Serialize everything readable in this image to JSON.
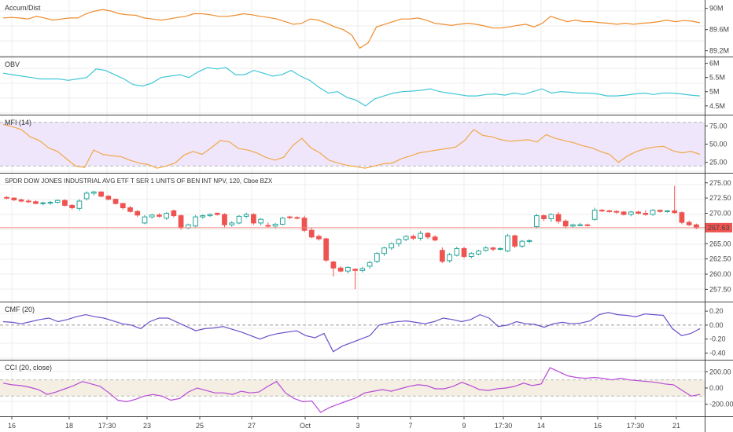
{
  "colors": {
    "accum": "#ef8b2c",
    "obv": "#3fc6d6",
    "mfi": "#f0a848",
    "mfi_band": "#efe6fb",
    "cmf": "#6c4fc8",
    "cci": "#b84ad8",
    "cci_band": "#f4efe2",
    "up": "#26a69a",
    "down": "#ef5350",
    "price_line": "#f28b82",
    "price_badge": "#ef5350",
    "grid": "#eeeeee",
    "border": "#444444"
  },
  "panels": {
    "accum": {
      "label": "Accum/Dist",
      "ticks": [
        "90M",
        "89.6M",
        "89.2M"
      ]
    },
    "obv": {
      "label": "OBV",
      "ticks": [
        "6M",
        "5.5M",
        "5M",
        "4.5M"
      ]
    },
    "mfi": {
      "label": "MFI (14)",
      "ticks": [
        "75.00",
        "50.00",
        "25.00"
      ]
    },
    "price": {
      "label": "SPDR DOW JONES INDUSTRIAL AVG ETF T SER 1 UNITS OF BEN INT NPV, 120, Cboe BZX",
      "ticks": [
        "275.00",
        "272.50",
        "270.00",
        "267.50",
        "265.00",
        "262.50",
        "260.00",
        "257.50"
      ],
      "last_price": "267.63"
    },
    "cmf": {
      "label": "CMF (20)",
      "ticks": [
        "0.20",
        "0.00",
        "-0.20",
        "-0.40"
      ]
    },
    "cci": {
      "label": "CCI (20, close)",
      "ticks": [
        "200.00",
        "0.00",
        "-200.00"
      ]
    }
  },
  "x_axis": {
    "labels": [
      "16",
      "18",
      "17:30",
      "23",
      "25",
      "27",
      "Oct",
      "3",
      "7",
      "9",
      "17:30",
      "14",
      "16",
      "17:30",
      "21"
    ]
  },
  "chart_data": [
    {
      "type": "candlestick",
      "title": "SPDR DOW JONES INDUSTRIAL AVG ETF T SER 1 UNITS OF BEN INT NPV, 120, Cboe BZX",
      "ylim": [
        256,
        276
      ],
      "last": 267.63,
      "candles": [
        [
          272.6,
          272.8,
          272.3,
          272.5
        ],
        [
          272.5,
          272.6,
          272.0,
          272.2
        ],
        [
          272.2,
          272.4,
          271.8,
          272.0
        ],
        [
          272.0,
          272.3,
          271.7,
          271.9
        ],
        [
          271.9,
          272.1,
          271.5,
          271.6
        ],
        [
          271.6,
          271.9,
          271.3,
          271.7
        ],
        [
          271.7,
          272.0,
          271.4,
          271.8
        ],
        [
          271.8,
          272.3,
          271.6,
          272.1
        ],
        [
          272.1,
          272.3,
          271.1,
          271.3
        ],
        [
          271.3,
          271.5,
          270.6,
          270.9
        ],
        [
          270.8,
          272.3,
          270.4,
          272.0
        ],
        [
          272.4,
          273.6,
          272.1,
          273.3
        ],
        [
          273.3,
          273.7,
          272.9,
          273.5
        ],
        [
          273.5,
          273.6,
          272.6,
          272.8
        ],
        [
          272.8,
          273.0,
          272.1,
          272.3
        ],
        [
          272.3,
          272.4,
          271.4,
          271.6
        ],
        [
          271.6,
          271.7,
          270.6,
          270.9
        ],
        [
          270.9,
          271.2,
          270.1,
          270.3
        ],
        [
          270.3,
          270.5,
          269.4,
          269.7
        ],
        [
          268.4,
          269.7,
          268.2,
          269.4
        ],
        [
          269.4,
          269.9,
          269.1,
          269.7
        ],
        [
          269.7,
          270.0,
          269.3,
          269.5
        ],
        [
          269.2,
          270.2,
          268.9,
          270.0
        ],
        [
          270.4,
          270.6,
          269.3,
          269.6
        ],
        [
          269.6,
          269.8,
          267.3,
          267.6
        ],
        [
          267.6,
          268.3,
          267.4,
          268.1
        ],
        [
          267.9,
          269.7,
          267.7,
          269.4
        ],
        [
          269.4,
          269.8,
          269.1,
          269.6
        ],
        [
          269.6,
          270.0,
          269.4,
          269.8
        ],
        [
          270.0,
          270.1,
          269.6,
          269.8
        ],
        [
          269.8,
          270.0,
          267.7,
          268.1
        ],
        [
          268.1,
          268.7,
          267.8,
          268.4
        ],
        [
          268.4,
          269.7,
          268.2,
          269.5
        ],
        [
          269.5,
          270.1,
          269.2,
          269.8
        ],
        [
          269.8,
          270.0,
          268.1,
          268.4
        ],
        [
          268.4,
          269.2,
          268.0,
          269.0
        ],
        [
          268.0,
          268.5,
          267.6,
          267.9
        ],
        [
          267.9,
          268.4,
          267.5,
          268.2
        ],
        [
          268.2,
          269.4,
          268.0,
          269.2
        ],
        [
          269.4,
          269.6,
          269.0,
          269.3
        ],
        [
          269.3,
          269.5,
          269.0,
          269.2
        ],
        [
          269.2,
          269.6,
          266.9,
          267.2
        ],
        [
          267.2,
          267.6,
          265.9,
          266.1
        ],
        [
          266.2,
          266.5,
          265.5,
          265.8
        ],
        [
          265.8,
          266.0,
          262.0,
          262.3
        ],
        [
          262.0,
          262.2,
          259.6,
          261.0
        ],
        [
          261.0,
          261.3,
          260.3,
          260.5
        ],
        [
          260.5,
          261.3,
          260.1,
          261.1
        ],
        [
          260.8,
          261.0,
          257.5,
          260.6
        ],
        [
          260.6,
          261.2,
          260.3,
          260.9
        ],
        [
          261.3,
          262.2,
          260.9,
          261.9
        ],
        [
          262.1,
          263.6,
          261.8,
          263.4
        ],
        [
          263.4,
          264.5,
          263.0,
          264.3
        ],
        [
          264.3,
          265.2,
          264.0,
          265.0
        ],
        [
          265.0,
          265.9,
          264.5,
          265.7
        ],
        [
          265.7,
          266.4,
          265.4,
          266.2
        ],
        [
          266.2,
          266.5,
          265.6,
          265.9
        ],
        [
          265.9,
          267.1,
          265.5,
          266.7
        ],
        [
          266.7,
          266.9,
          265.8,
          266.1
        ],
        [
          266.1,
          266.4,
          265.4,
          265.6
        ],
        [
          263.9,
          264.4,
          261.8,
          262.1
        ],
        [
          262.2,
          263.5,
          261.9,
          263.2
        ],
        [
          263.1,
          264.5,
          262.9,
          264.2
        ],
        [
          264.2,
          264.5,
          262.6,
          262.9
        ],
        [
          262.9,
          263.6,
          262.6,
          263.4
        ],
        [
          263.3,
          264.0,
          263.1,
          263.8
        ],
        [
          263.9,
          264.6,
          263.7,
          264.3
        ],
        [
          264.3,
          264.5,
          263.8,
          264.1
        ],
        [
          264.1,
          264.4,
          263.9,
          264.2
        ],
        [
          263.8,
          266.6,
          263.6,
          266.3
        ],
        [
          266.3,
          266.5,
          264.3,
          264.6
        ],
        [
          264.6,
          265.6,
          264.3,
          265.4
        ],
        [
          265.4,
          265.7,
          265.1,
          265.5
        ],
        [
          267.8,
          269.9,
          267.5,
          269.6
        ],
        [
          269.6,
          269.8,
          268.7,
          269.1
        ],
        [
          269.1,
          270.0,
          268.6,
          269.8
        ],
        [
          269.8,
          270.2,
          268.3,
          268.7
        ],
        [
          268.7,
          269.0,
          267.5,
          267.9
        ],
        [
          267.9,
          268.3,
          267.6,
          268.1
        ],
        [
          268.1,
          268.4,
          267.9,
          268.1
        ],
        [
          268.1,
          268.3,
          267.8,
          268.0
        ],
        [
          269.0,
          270.9,
          268.8,
          270.5
        ],
        [
          270.5,
          270.7,
          270.2,
          270.4
        ],
        [
          270.4,
          270.6,
          270.1,
          270.3
        ],
        [
          270.3,
          270.5,
          269.9,
          270.2
        ],
        [
          270.2,
          270.4,
          269.6,
          269.8
        ],
        [
          269.8,
          270.4,
          269.5,
          270.2
        ],
        [
          270.2,
          270.4,
          269.8,
          270.0
        ],
        [
          270.0,
          270.5,
          269.6,
          269.8
        ],
        [
          269.8,
          270.7,
          269.6,
          270.5
        ],
        [
          270.5,
          270.6,
          270.1,
          270.3
        ],
        [
          270.3,
          270.5,
          270.1,
          270.4
        ],
        [
          270.4,
          274.5,
          269.9,
          270.1
        ],
        [
          270.1,
          270.3,
          268.2,
          268.5
        ],
        [
          268.5,
          268.8,
          267.9,
          268.1
        ],
        [
          268.1,
          268.3,
          267.4,
          267.6
        ]
      ]
    },
    {
      "type": "line",
      "name": "Accum/Dist",
      "ylim": [
        89.15,
        90.1
      ],
      "values": [
        89.82,
        89.83,
        89.82,
        89.8,
        89.85,
        89.82,
        89.78,
        89.8,
        89.82,
        89.82,
        89.9,
        89.95,
        89.98,
        89.95,
        89.9,
        89.88,
        89.87,
        89.82,
        89.8,
        89.78,
        89.8,
        89.83,
        89.85,
        89.9,
        89.9,
        89.88,
        89.85,
        89.85,
        89.87,
        89.9,
        89.88,
        89.85,
        89.83,
        89.8,
        89.75,
        89.7,
        89.72,
        89.8,
        89.78,
        89.72,
        89.65,
        89.6,
        89.5,
        89.25,
        89.35,
        89.65,
        89.7,
        89.75,
        89.8,
        89.8,
        89.82,
        89.78,
        89.72,
        89.7,
        89.68,
        89.7,
        89.72,
        89.7,
        89.67,
        89.63,
        89.63,
        89.65,
        89.68,
        89.7,
        89.65,
        89.72,
        89.85,
        89.8,
        89.75,
        89.78,
        89.75,
        89.75,
        89.73,
        89.72,
        89.7,
        89.72,
        89.7,
        89.72,
        89.73,
        89.75,
        89.78,
        89.75,
        89.77,
        89.76,
        89.73
      ]
    },
    {
      "type": "line",
      "name": "OBV",
      "ylim": [
        4.3,
        6.1
      ],
      "values": [
        5.65,
        5.6,
        5.55,
        5.5,
        5.45,
        5.45,
        5.45,
        5.4,
        5.45,
        5.5,
        5.8,
        5.75,
        5.6,
        5.45,
        5.25,
        5.2,
        5.3,
        5.5,
        5.55,
        5.6,
        5.5,
        5.7,
        5.85,
        5.8,
        5.85,
        5.6,
        5.6,
        5.75,
        5.65,
        5.55,
        5.6,
        5.75,
        5.55,
        5.4,
        5.15,
        4.95,
        5.0,
        4.8,
        4.7,
        4.5,
        4.75,
        4.85,
        4.95,
        5.0,
        5.02,
        5.05,
        5.1,
        5.0,
        4.95,
        4.9,
        4.85,
        4.85,
        4.9,
        4.92,
        4.88,
        4.95,
        4.9,
        5.0,
        5.1,
        4.95,
        5.0,
        4.98,
        4.95,
        4.95,
        4.92,
        4.85,
        4.85,
        4.88,
        4.92,
        4.95,
        4.9,
        4.95,
        4.95,
        4.92,
        4.88,
        4.85
      ]
    },
    {
      "type": "line",
      "name": "MFI (14)",
      "ylim": [
        15,
        85
      ],
      "bands": [
        80,
        20
      ],
      "values": [
        77,
        74,
        70,
        60,
        55,
        45,
        40,
        30,
        20,
        18,
        42,
        36,
        34,
        33,
        28,
        24,
        22,
        17,
        20,
        24,
        35,
        40,
        36,
        45,
        55,
        53,
        44,
        42,
        38,
        32,
        28,
        32,
        48,
        58,
        45,
        38,
        28,
        24,
        21,
        19,
        17,
        20,
        23,
        24,
        30,
        34,
        38,
        40,
        42,
        44,
        46,
        55,
        70,
        62,
        60,
        56,
        54,
        55,
        56,
        53,
        63,
        58,
        55,
        52,
        48,
        45,
        40,
        36,
        25,
        34,
        40,
        44,
        46,
        47,
        41,
        38,
        40,
        36
      ]
    },
    {
      "type": "line",
      "name": "CMF (20)",
      "ylim": [
        -0.45,
        0.28
      ],
      "values": [
        0.05,
        0.04,
        0.02,
        0.05,
        0.08,
        0.1,
        0.05,
        0.08,
        0.12,
        0.15,
        0.12,
        0.1,
        0.06,
        0.02,
        0.0,
        -0.05,
        0.05,
        0.1,
        0.1,
        0.04,
        -0.02,
        -0.08,
        -0.05,
        -0.04,
        -0.02,
        -0.06,
        -0.1,
        -0.15,
        -0.2,
        -0.15,
        -0.12,
        -0.1,
        -0.08,
        -0.15,
        -0.18,
        -0.12,
        -0.38,
        -0.3,
        -0.25,
        -0.2,
        -0.15,
        0.0,
        0.03,
        0.05,
        0.06,
        0.04,
        0.02,
        0.05,
        0.1,
        0.08,
        0.05,
        0.08,
        0.15,
        0.1,
        -0.02,
        0.0,
        0.05,
        0.02,
        0.01,
        -0.03,
        0.02,
        0.04,
        0.02,
        0.03,
        0.06,
        0.15,
        0.18,
        0.15,
        0.14,
        0.12,
        0.16,
        0.15,
        0.14,
        -0.05,
        -0.15,
        -0.12,
        -0.05
      ]
    },
    {
      "type": "line",
      "name": "CCI (20, close)",
      "ylim": [
        -310,
        300
      ],
      "bands": [
        100,
        -100
      ],
      "values": [
        60,
        40,
        30,
        10,
        -20,
        -80,
        -50,
        -10,
        30,
        80,
        50,
        20,
        -60,
        -150,
        -170,
        -140,
        -100,
        -80,
        -100,
        -150,
        -130,
        -50,
        0,
        -30,
        -60,
        -60,
        -80,
        -40,
        -60,
        -50,
        20,
        80,
        -60,
        -130,
        -170,
        -160,
        -300,
        -240,
        -200,
        -160,
        -120,
        -60,
        -40,
        -20,
        -40,
        -10,
        20,
        40,
        30,
        -10,
        -10,
        20,
        70,
        30,
        -20,
        -30,
        -10,
        0,
        20,
        60,
        30,
        50,
        250,
        200,
        150,
        130,
        120,
        130,
        120,
        100,
        120,
        100,
        90,
        80,
        70,
        50,
        40,
        -30,
        -100,
        -80
      ]
    }
  ]
}
